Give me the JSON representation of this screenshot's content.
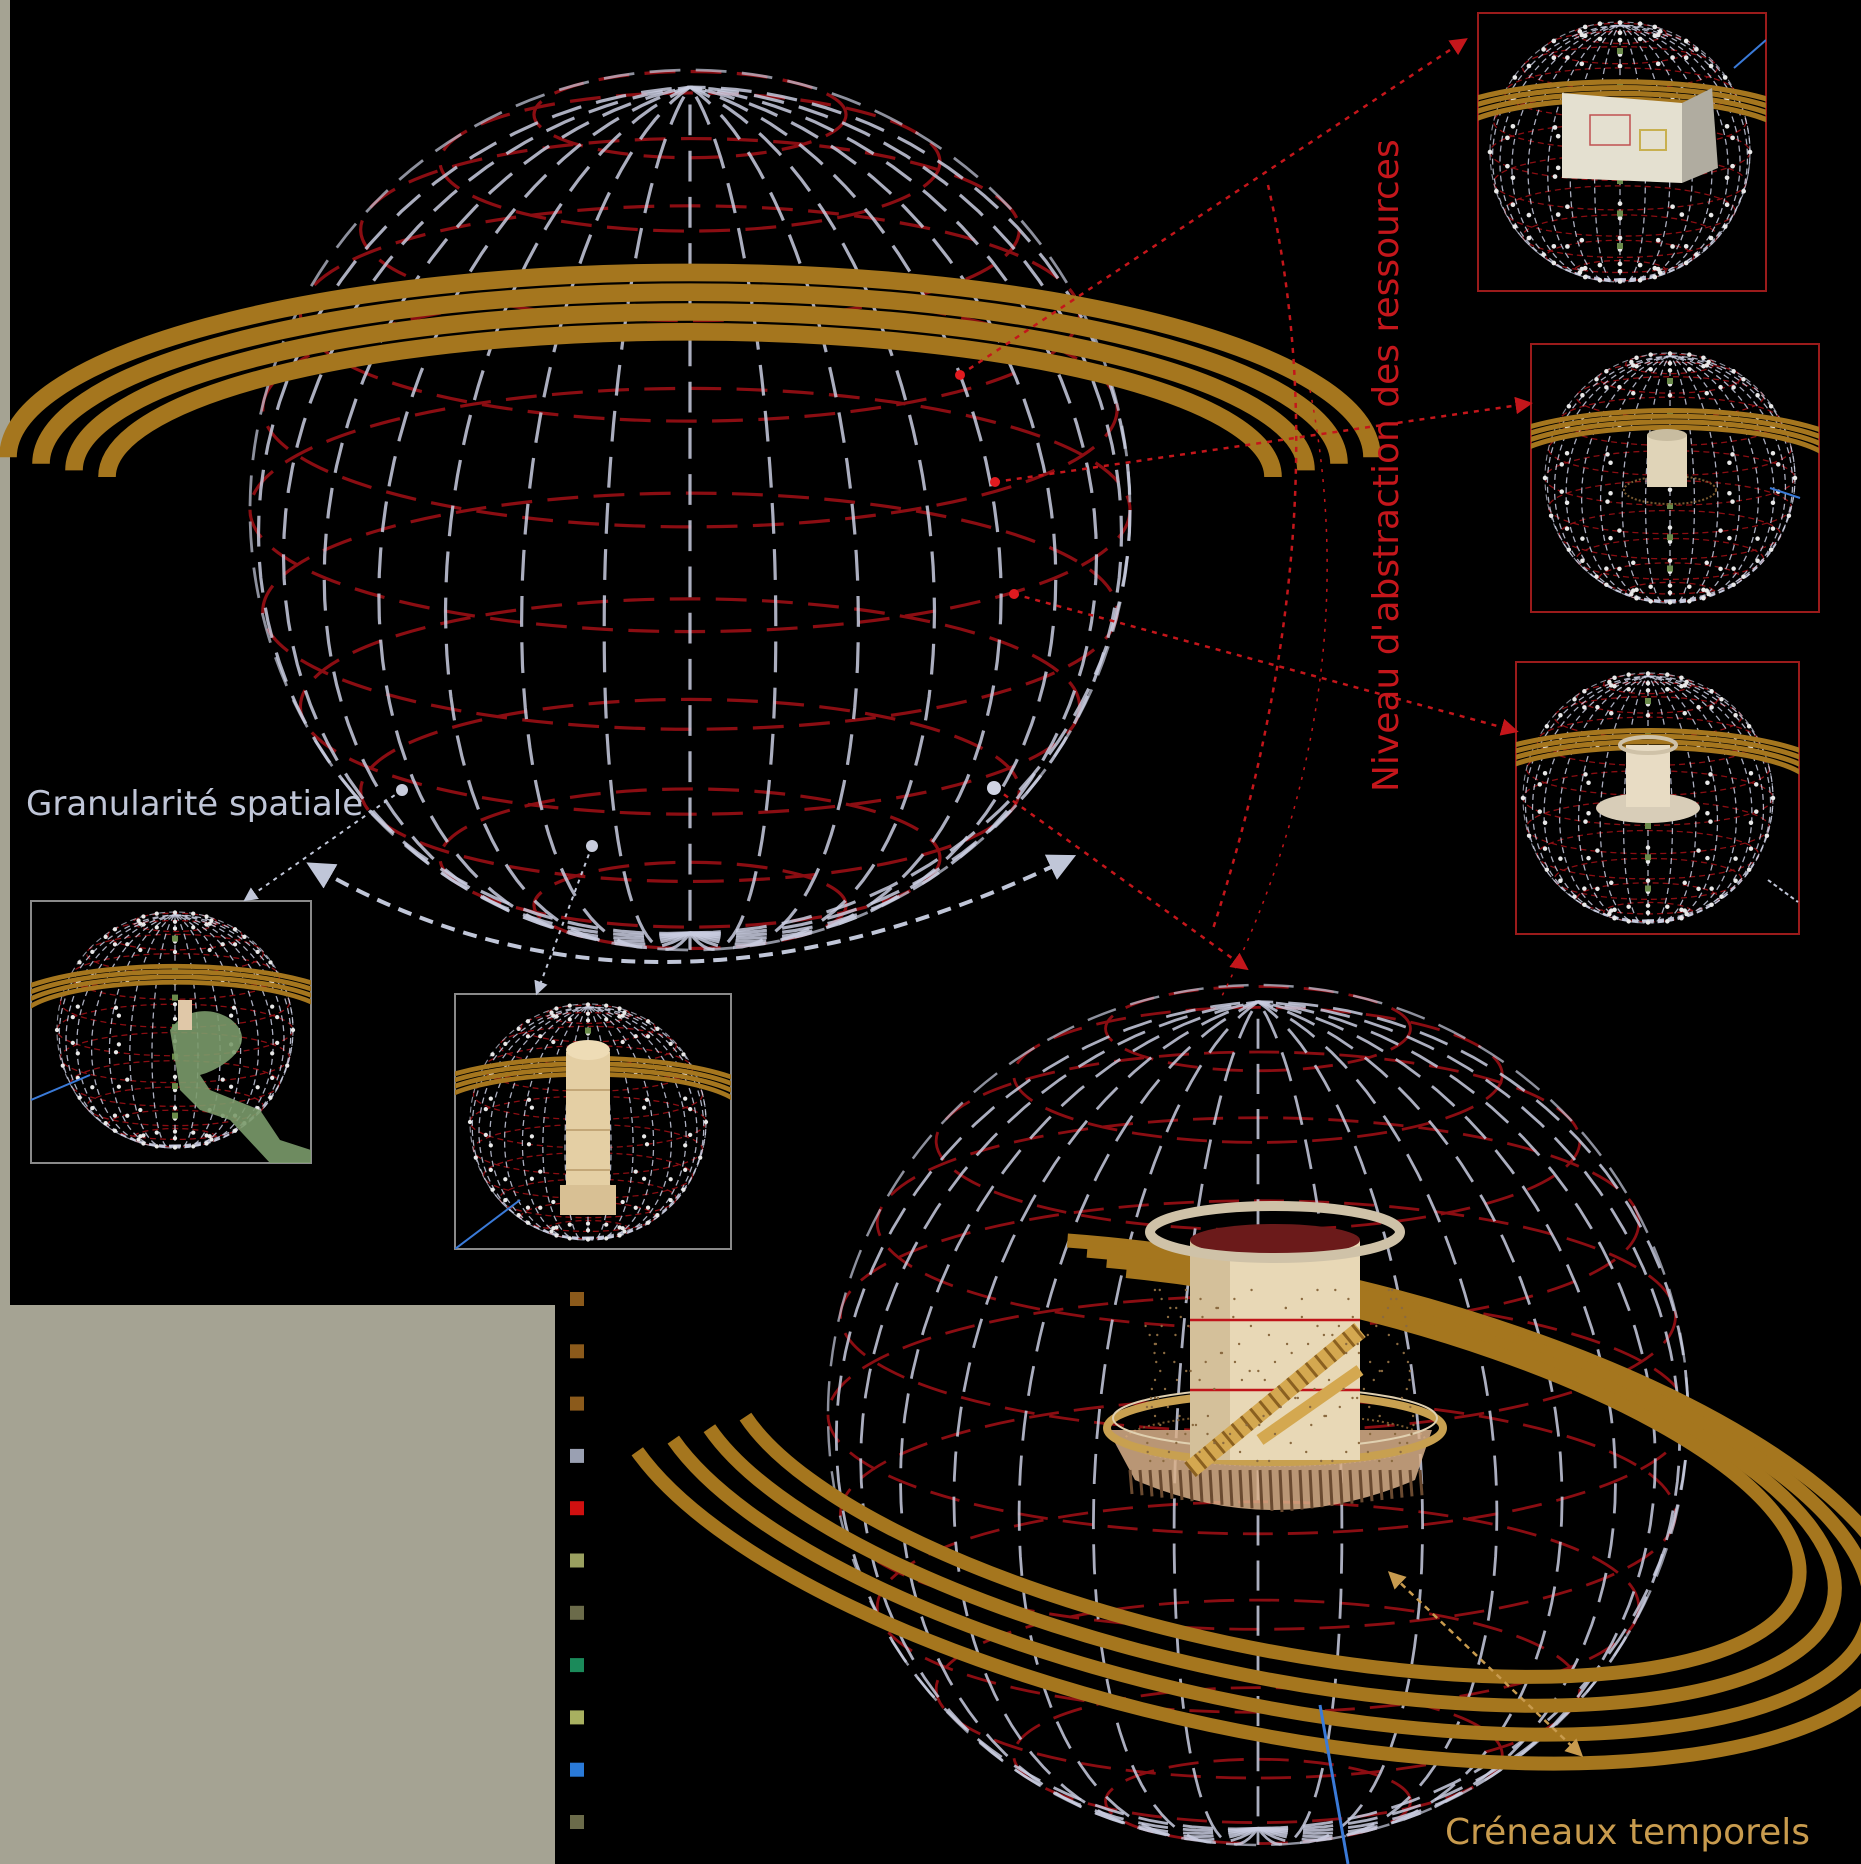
{
  "labels": {
    "spatial": "Granularité spatiale",
    "abstraction": "Niveau d'abstraction des ressources",
    "temporal": "Créneaux temporels"
  },
  "colors": {
    "background": "#000000",
    "frame": "#a5a393",
    "meridian": "#c9cde0",
    "parallel": "#8b0d12",
    "ring": "#a5761e",
    "abstraction": "#c4161b",
    "spatial": "#c0c6d8",
    "temporal": "#c89b4e",
    "box_border_red": "#9b1b1b",
    "box_border_grey": "#8a8a8a"
  },
  "legend_swatches": [
    "#8b5a1b",
    "#8b5a1b",
    "#8b5a1b",
    "#9aa0b2",
    "#d01010",
    "#9aa060",
    "#6b6b4a",
    "#1b8a5a",
    "#a8b060",
    "#2a7ad8",
    "#6b6b4a"
  ],
  "thumbnails": [
    {
      "id": "thumb-floor-plan",
      "border": "red",
      "content": "floor-plan"
    },
    {
      "id": "thumb-tower-ring",
      "border": "red",
      "content": "tower-ring"
    },
    {
      "id": "thumb-tower-stairs",
      "border": "red",
      "content": "tower-stairs"
    },
    {
      "id": "thumb-site-plan",
      "border": "grey",
      "content": "site-plan"
    },
    {
      "id": "thumb-full-tower",
      "border": "grey",
      "content": "full-tower"
    }
  ]
}
